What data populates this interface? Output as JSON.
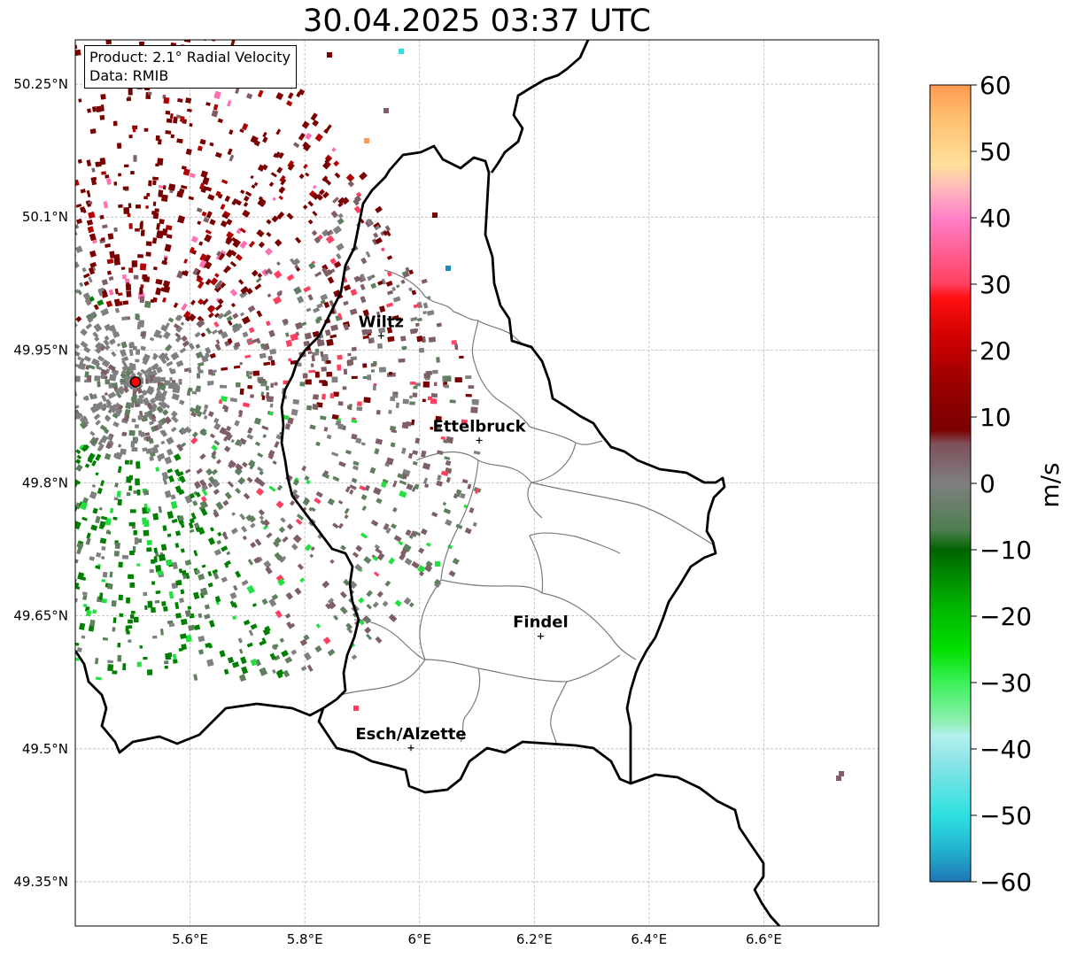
{
  "title": "30.04.2025 03:37 UTC",
  "info_box": {
    "product": "Product: 2.1° Radial Velocity",
    "data": "Data: RMIB"
  },
  "map": {
    "lon_range": [
      5.4,
      6.8
    ],
    "lat_range": [
      49.3,
      50.3
    ],
    "lon_ticks": [
      {
        "value": 5.6,
        "label": "5.6°E"
      },
      {
        "value": 5.8,
        "label": "5.8°E"
      },
      {
        "value": 6.0,
        "label": "6°E"
      },
      {
        "value": 6.2,
        "label": "6.2°E"
      },
      {
        "value": 6.4,
        "label": "6.4°E"
      },
      {
        "value": 6.6,
        "label": "6.6°E"
      }
    ],
    "lat_ticks": [
      {
        "value": 50.25,
        "label": "50.25°N"
      },
      {
        "value": 50.1,
        "label": "50.1°N"
      },
      {
        "value": 49.95,
        "label": "49.95°N"
      },
      {
        "value": 49.8,
        "label": "49.8°N"
      },
      {
        "value": 49.65,
        "label": "49.65°N"
      },
      {
        "value": 49.5,
        "label": "49.5°N"
      },
      {
        "value": 49.35,
        "label": "49.35°N"
      }
    ],
    "grid": true,
    "radar_site": {
      "lon": 5.505,
      "lat": 49.914,
      "color": "#ff0000"
    },
    "cities": [
      {
        "name": "Wiltz",
        "lon": 5.933,
        "lat": 49.966
      },
      {
        "name": "Ettelbruck",
        "lon": 6.104,
        "lat": 49.848
      },
      {
        "name": "Findel",
        "lon": 6.211,
        "lat": 49.627
      },
      {
        "name": "Esch/Alzette",
        "lon": 5.985,
        "lat": 49.501
      }
    ]
  },
  "colorbar": {
    "label": "m/s",
    "range": [
      -60,
      60
    ],
    "ticks": [
      {
        "value": 60,
        "label": "60"
      },
      {
        "value": 50,
        "label": "50"
      },
      {
        "value": 40,
        "label": "40"
      },
      {
        "value": 30,
        "label": "30"
      },
      {
        "value": 20,
        "label": "20"
      },
      {
        "value": 10,
        "label": "10"
      },
      {
        "value": 0,
        "label": "0"
      },
      {
        "value": -10,
        "label": "−10"
      },
      {
        "value": -20,
        "label": "−20"
      },
      {
        "value": -30,
        "label": "−30"
      },
      {
        "value": -40,
        "label": "−40"
      },
      {
        "value": -50,
        "label": "−50"
      },
      {
        "value": -60,
        "label": "−60"
      }
    ],
    "stops": [
      {
        "value": -60,
        "color": "#1f77b4"
      },
      {
        "value": -55,
        "color": "#22b4d0"
      },
      {
        "value": -50,
        "color": "#2ee0e0"
      },
      {
        "value": -42,
        "color": "#8ae4e6"
      },
      {
        "value": -38,
        "color": "#b4f0ee"
      },
      {
        "value": -36,
        "color": "#90f0b4"
      },
      {
        "value": -30,
        "color": "#3cf05a"
      },
      {
        "value": -25,
        "color": "#00e000"
      },
      {
        "value": -18,
        "color": "#00b000"
      },
      {
        "value": -10,
        "color": "#006400"
      },
      {
        "value": -7,
        "color": "#4f7f4f"
      },
      {
        "value": 0,
        "color": "#7f7f7f"
      },
      {
        "value": 6,
        "color": "#7f4f5a"
      },
      {
        "value": 8,
        "color": "#7a0000"
      },
      {
        "value": 15,
        "color": "#9a0000"
      },
      {
        "value": 22,
        "color": "#d00000"
      },
      {
        "value": 28,
        "color": "#ff1010"
      },
      {
        "value": 30,
        "color": "#ff4060"
      },
      {
        "value": 40,
        "color": "#ff80c8"
      },
      {
        "value": 44,
        "color": "#ffb4c0"
      },
      {
        "value": 48,
        "color": "#ffe09a"
      },
      {
        "value": 55,
        "color": "#ffc070"
      },
      {
        "value": 60,
        "color": "#ff9a50"
      }
    ]
  },
  "velocity_palette": {
    "outbound_strong": "#7a0000",
    "outbound_mid": "#b00000",
    "outbound_light": "#ff4060",
    "zero_grey": "#808080",
    "near_zero_inbound": "#5f7f5f",
    "near_zero_outbound": "#7f5f66",
    "inbound_strong": "#008000",
    "inbound_bright": "#22e040",
    "pink": "#ff70b0",
    "cyan": "#30e0e0",
    "blue": "#1f8bb4",
    "orange": "#ff9a50"
  }
}
